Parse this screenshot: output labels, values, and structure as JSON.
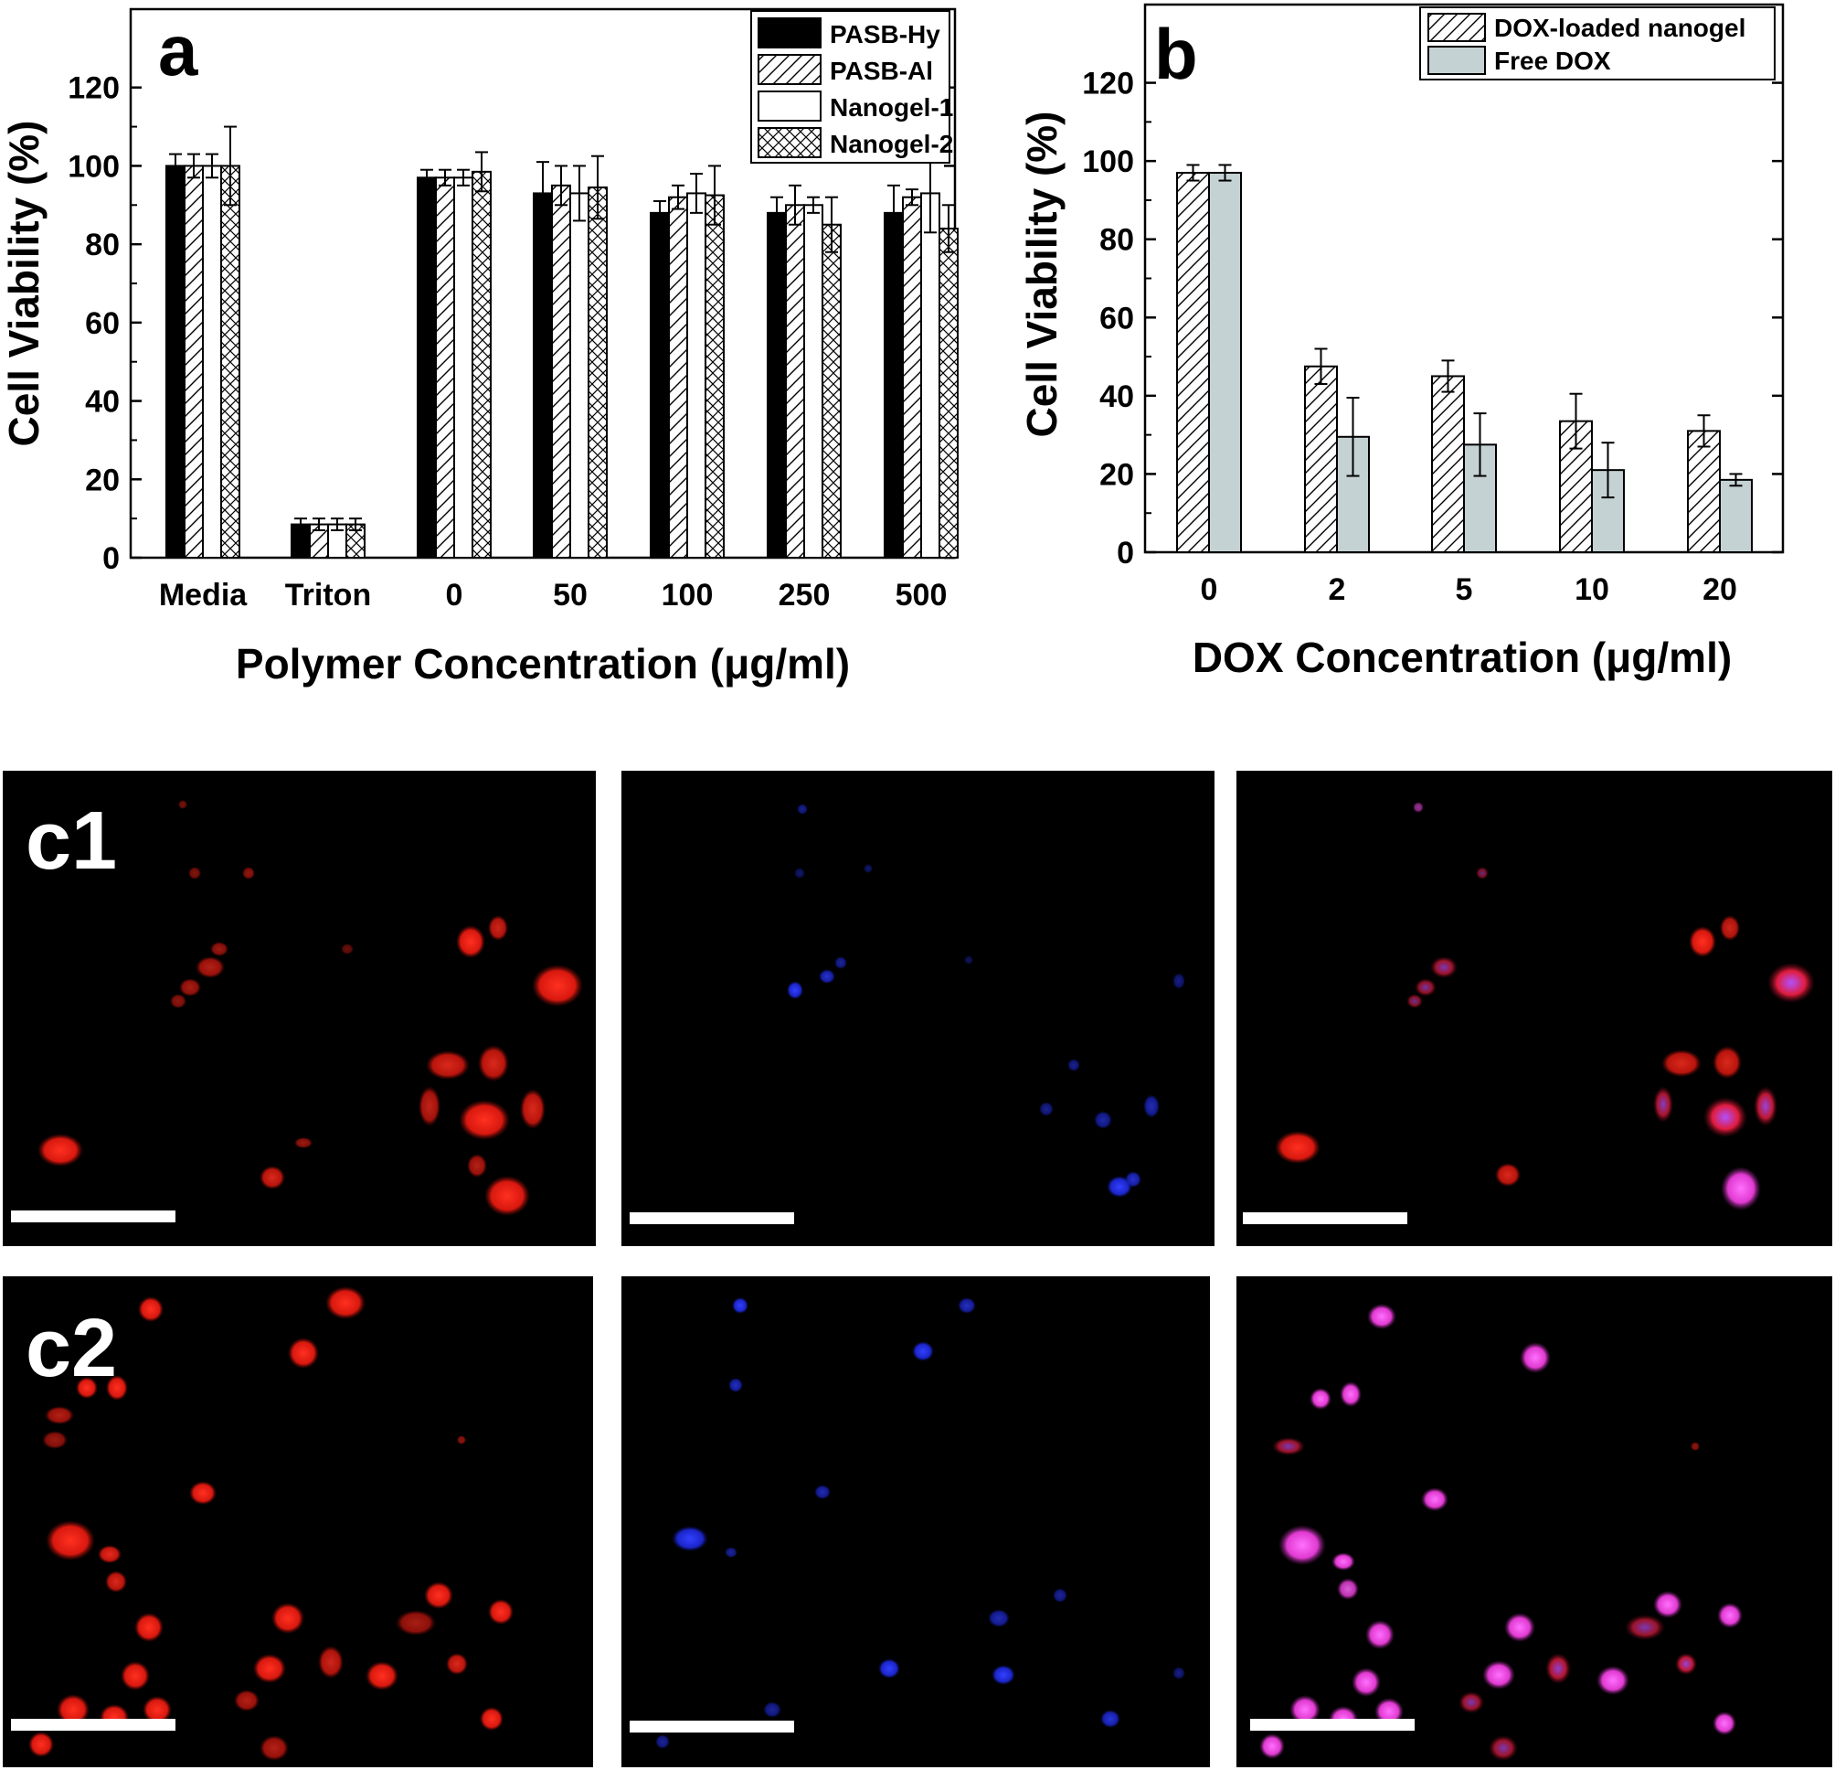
{
  "chart_data": [
    {
      "panel": "a",
      "type": "bar",
      "xlabel": "Polymer Concentration (μg/ml)",
      "ylabel": "Cell Viability (%)",
      "ylim": [
        0,
        140
      ],
      "yticks": [
        0,
        20,
        40,
        60,
        80,
        100,
        120
      ],
      "categories": [
        "Media",
        "Triton",
        "0",
        "50",
        "100",
        "250",
        "500"
      ],
      "legend_position": "top-right",
      "series": [
        {
          "name": "PASB-Hy",
          "pattern": "solid",
          "values": [
            100,
            8.5,
            97,
            93,
            88,
            88,
            88
          ],
          "errors": [
            3,
            1.5,
            2,
            8,
            3,
            4,
            7
          ]
        },
        {
          "name": "PASB-Al",
          "pattern": "hatch",
          "values": [
            100,
            8.5,
            97,
            95,
            92,
            90,
            92
          ],
          "errors": [
            3,
            1.5,
            2,
            5,
            3,
            5,
            2
          ]
        },
        {
          "name": "Nanogel-1",
          "pattern": "open",
          "values": [
            100,
            8.5,
            97,
            93,
            93,
            90,
            93
          ],
          "errors": [
            3,
            1.5,
            2,
            7,
            5,
            2,
            10
          ]
        },
        {
          "name": "Nanogel-2",
          "pattern": "crosshatch",
          "values": [
            100,
            8.5,
            98.5,
            94.5,
            92.5,
            85,
            84
          ],
          "errors": [
            10,
            1.5,
            5,
            8,
            7.5,
            7,
            6
          ]
        }
      ]
    },
    {
      "panel": "b",
      "type": "bar",
      "xlabel": "DOX Concentration (μg/ml)",
      "ylabel": "Cell Viability (%)",
      "ylim": [
        0,
        140
      ],
      "yticks": [
        0,
        20,
        40,
        60,
        80,
        100,
        120
      ],
      "categories": [
        "0",
        "2",
        "5",
        "10",
        "20"
      ],
      "legend_position": "top-right",
      "series": [
        {
          "name": "DOX-loaded nanogel",
          "pattern": "hatch",
          "values": [
            97,
            47.5,
            45,
            33.5,
            31
          ],
          "errors": [
            2,
            4.5,
            4,
            7,
            4
          ]
        },
        {
          "name": "Free DOX",
          "pattern": "gray",
          "color": "#c5d2d3",
          "values": [
            97,
            29.5,
            27.5,
            21,
            18.5
          ],
          "errors": [
            2,
            10,
            8,
            7,
            1.5
          ]
        }
      ]
    }
  ],
  "micrographs": {
    "row_labels": [
      "c1",
      "c2"
    ],
    "channels": [
      "red",
      "blue",
      "merged"
    ],
    "colors": {
      "red": "#e01c14",
      "blue": "#1f2cd8",
      "merged": "#e83ccf",
      "background": "#000000",
      "scale_bar": "#ffffff"
    }
  }
}
